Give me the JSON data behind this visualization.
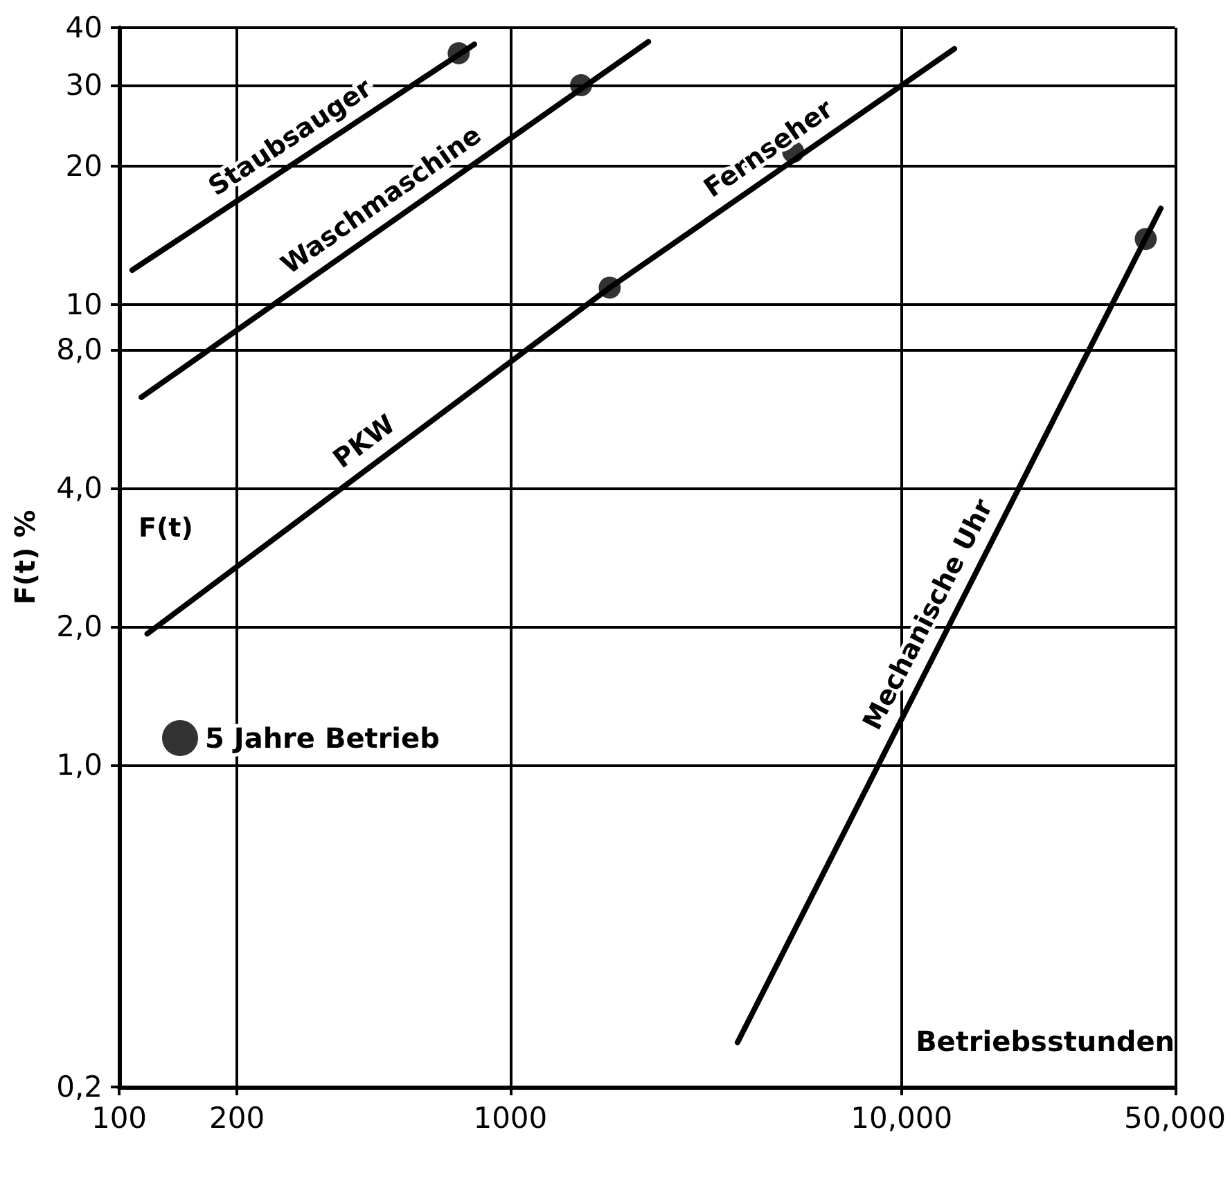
{
  "chart_data": {
    "type": "line",
    "xlabel": "Betriebsstunden",
    "ylabel": "F(t) %",
    "annotations": [
      "F(t)"
    ],
    "log": "xy",
    "grid": true,
    "legend": "left",
    "marker": "none",
    "line_style": "solid",
    "xlim": [
      100,
      50000
    ],
    "xticks": [
      100,
      200,
      1000,
      {
        "value": 10000,
        "label": "10,000"
      },
      {
        "value": 50000,
        "label": "50,000"
      }
    ],
    "ylim": [
      0.2,
      40
    ],
    "yticks": [
      {
        "value": 0.2,
        "label": "0,2"
      },
      {
        "value": 1,
        "label": "1,0"
      },
      {
        "value": 2,
        "label": "2,0"
      },
      {
        "value": 4,
        "label": "4,0"
      },
      {
        "value": 8,
        "label": "8,0"
      },
      10,
      20,
      30,
      40
    ],
    "series": [
      {
        "name": "Staubsauger",
        "color": "#000000",
        "x": [
          108,
          809
        ],
        "values": [
          11.9,
          36.8
        ]
      },
      {
        "name": "Waschmaschine",
        "color": "#000000",
        "x": [
          114,
          2254
        ],
        "values": [
          6.3,
          37.3
        ]
      },
      {
        "name": "PKW",
        "color": "#000000",
        "x": [
          118,
          1795
        ],
        "values": [
          1.93,
          10.9
        ]
      },
      {
        "name": "Fernseher",
        "color": "#000000",
        "x": [
          1795,
          13650
        ],
        "values": [
          10.9,
          36.0
        ]
      },
      {
        "name": "Mechanische Uhr",
        "color": "#000000",
        "x": [
          3810,
          46000
        ],
        "values": [
          0.25,
          16.2
        ]
      },
      {
        "name": "5 Jahre Betrieb",
        "type": "scatter",
        "marker": "circle",
        "color": "#000000",
        "x": [
          738,
          1517,
          1795,
          5285,
          42100
        ],
        "values": [
          35.2,
          30,
          10.9,
          21.5,
          13.9
        ]
      }
    ]
  }
}
